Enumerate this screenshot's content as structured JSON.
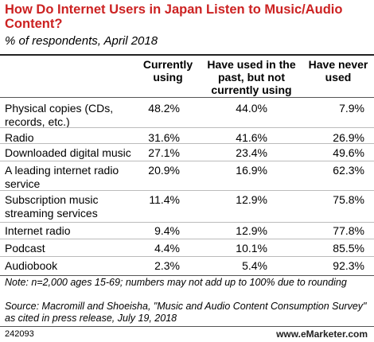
{
  "title": "How Do Internet Users in Japan Listen to Music/Audio Content?",
  "subtitle": "% of respondents, April 2018",
  "chart_data": {
    "type": "table",
    "columns": [
      "Currently using",
      "Have used in the past, but not currently using",
      "Have never used"
    ],
    "rows": [
      {
        "label": "Physical copies (CDs, records, etc.)",
        "values": [
          "48.2%",
          "44.0%",
          "7.9%"
        ]
      },
      {
        "label": "Radio",
        "values": [
          "31.6%",
          "41.6%",
          "26.9%"
        ]
      },
      {
        "label": "Downloaded digital music",
        "values": [
          "27.1%",
          "23.4%",
          "49.6%"
        ]
      },
      {
        "label": "A leading internet radio service",
        "values": [
          "20.9%",
          "16.9%",
          "62.3%"
        ]
      },
      {
        "label": "Subscription music streaming services",
        "values": [
          "11.4%",
          "12.9%",
          "75.8%"
        ]
      },
      {
        "label": "Internet radio",
        "values": [
          "9.4%",
          "12.9%",
          "77.8%"
        ]
      },
      {
        "label": "Podcast",
        "values": [
          "4.4%",
          "10.1%",
          "85.5%"
        ]
      },
      {
        "label": "Audiobook",
        "values": [
          "2.3%",
          "5.4%",
          "92.3%"
        ]
      }
    ]
  },
  "note": "Note: n=2,000 ages 15-69; numbers may not add up to 100% due to rounding",
  "source": "Source: Macromill and Shoeisha, \"Music and Audio Content Consumption Survey\" as cited in press release, July 19, 2018",
  "footer": {
    "id": "242093",
    "brand": "www.eMarketer.com"
  }
}
